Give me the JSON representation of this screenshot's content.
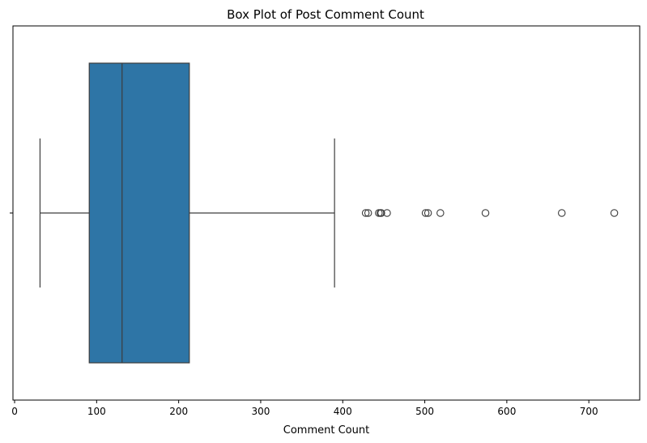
{
  "chart_data": {
    "type": "box",
    "title": "Box Plot of Post Comment Count",
    "xlabel": "Comment Count",
    "ylabel": "",
    "xlim": [
      -2,
      762
    ],
    "xticks": [
      0,
      100,
      200,
      300,
      400,
      500,
      600,
      700
    ],
    "orientation": "horizontal",
    "grid": false,
    "box": {
      "min_whisker": 31,
      "q1": 91,
      "median": 131,
      "q3": 213,
      "max_whisker": 390,
      "color": "#2e75a6"
    },
    "outliers": [
      428,
      431,
      444,
      446,
      447,
      454,
      501,
      504,
      519,
      574,
      667,
      731
    ]
  }
}
